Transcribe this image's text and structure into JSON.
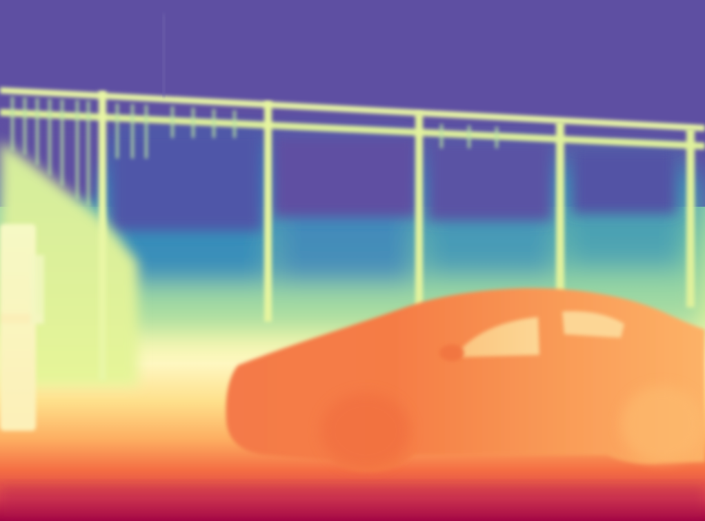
{
  "image": {
    "kind": "depth-map",
    "colormap": "Spectral",
    "palette": {
      "far": "#5e4fa2",
      "far_mid": "#3288bd",
      "mid": "#66c2a5",
      "mid_near": "#abdda4",
      "near_light": "#e6f598",
      "pale": "#fee08b",
      "near": "#fdae61",
      "closer": "#f46d43",
      "closest": "#d53e4f",
      "nearest": "#9e0142"
    },
    "regions": [
      "sky",
      "railing",
      "background-structure",
      "left-object",
      "car",
      "ground"
    ]
  }
}
